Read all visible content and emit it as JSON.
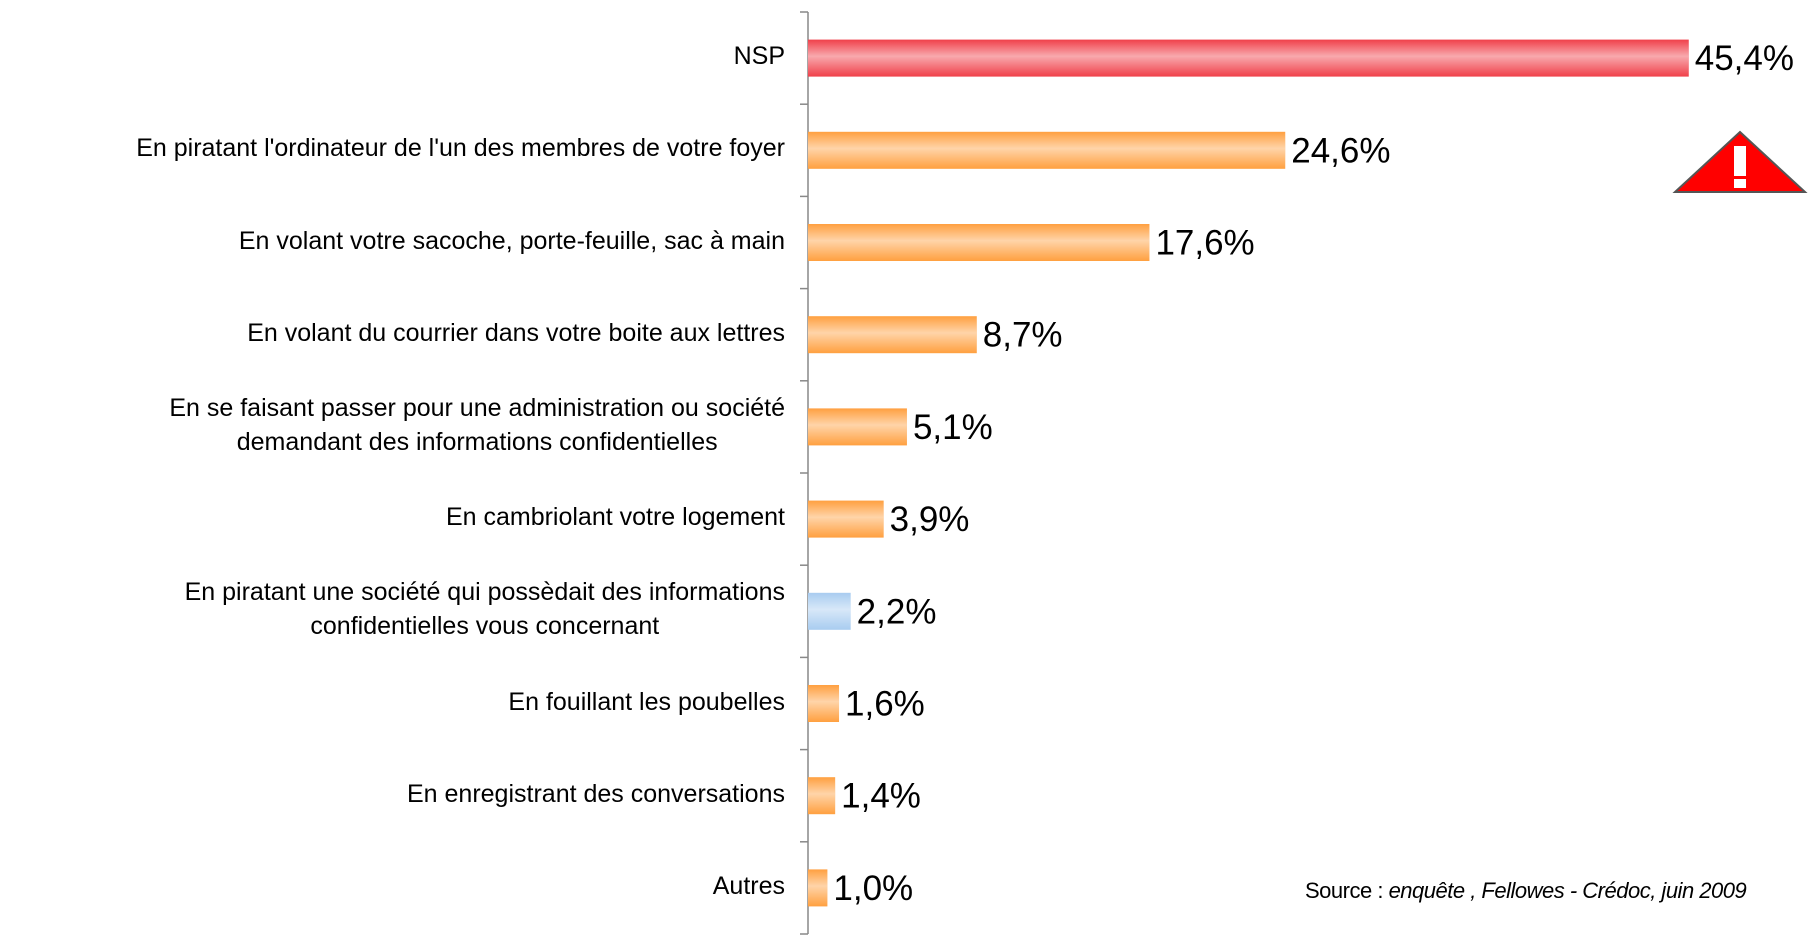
{
  "chart_data": {
    "type": "bar",
    "orientation": "horizontal",
    "categories": [
      "NSP",
      "En piratant l'ordinateur de l'un des membres de votre foyer",
      "En volant votre sacoche, porte-feuille, sac à main",
      "En volant du courrier dans votre boite aux lettres",
      "En se faisant passer pour une administration ou société\ndemandant des informations confidentielles",
      "En cambriolant votre logement",
      "En piratant une société qui possèdait des informations\nconfidentielles vous concernant",
      "En fouillant les poubelles",
      "En enregistrant des conversations",
      "Autres"
    ],
    "values": [
      45.4,
      24.6,
      17.6,
      8.7,
      5.1,
      3.9,
      2.2,
      1.6,
      1.4,
      1.0
    ],
    "value_labels": [
      "45,4%",
      "24,6%",
      "17,6%",
      "8,7%",
      "5,1%",
      "3,9%",
      "2,2%",
      "1,6%",
      "1,4%",
      "1,0%"
    ],
    "colors": [
      "#f0404a",
      "#ffa040",
      "#ffa040",
      "#ffa040",
      "#ffa040",
      "#ffa040",
      "#a8ccf0",
      "#ffa040",
      "#ffa040",
      "#ffa040"
    ],
    "xlim": [
      0,
      50
    ],
    "source": {
      "label": "Source :",
      "text": "enquête , Fellowes - Crédoc, juin 2009"
    }
  }
}
